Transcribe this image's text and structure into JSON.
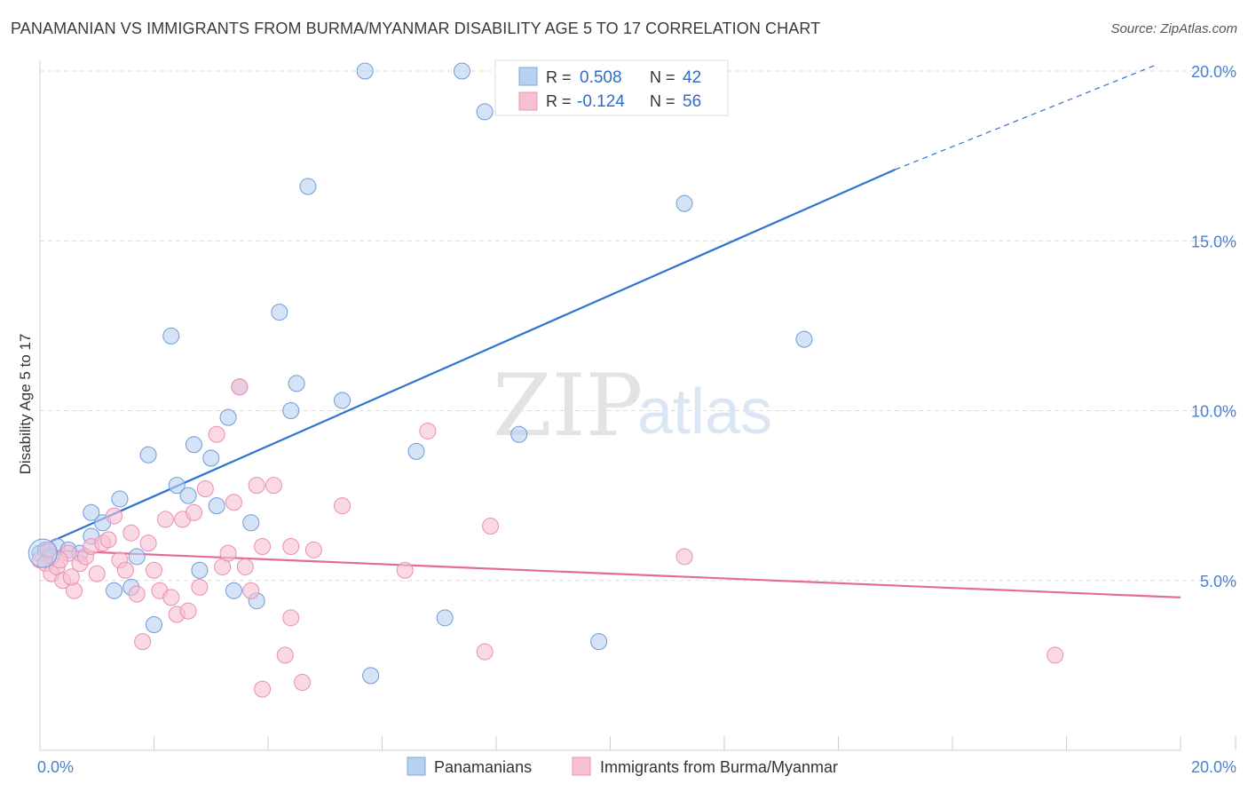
{
  "header": {
    "title": "PANAMANIAN VS IMMIGRANTS FROM BURMA/MYANMAR DISABILITY AGE 5 TO 17 CORRELATION CHART",
    "source": "Source: ZipAtlas.com"
  },
  "watermark": {
    "zip": "ZIP",
    "atlas": "atlas"
  },
  "colors": {
    "blue": "#2f73d0",
    "blue_fill": "#b9d1f1",
    "pink": "#e36b98",
    "pink_fill": "#f6bfd2",
    "tick_text": "#4a7fd0"
  },
  "legend_top": {
    "rows": [
      {
        "r_label": "R =",
        "r_value": "0.508",
        "n_label": "N =",
        "n_value": "42"
      },
      {
        "r_label": "R =",
        "r_value": "-0.124",
        "n_label": "N =",
        "n_value": "56"
      }
    ]
  },
  "legend_bottom": {
    "items": [
      {
        "label": "Panamanians"
      },
      {
        "label": "Immigrants from Burma/Myanmar"
      }
    ]
  },
  "chart_data": {
    "type": "scatter",
    "title": "PANAMANIAN VS IMMIGRANTS FROM BURMA/MYANMAR DISABILITY AGE 5 TO 17 CORRELATION CHART",
    "xlabel": "",
    "ylabel": "Disability Age 5 to 17",
    "xlim": [
      0,
      20
    ],
    "ylim": [
      0,
      20
    ],
    "x_tick_labels": [
      "0.0%",
      "20.0%"
    ],
    "y_tick_labels": [
      "5.0%",
      "10.0%",
      "15.0%",
      "20.0%"
    ],
    "y_tick_values": [
      5,
      10,
      15,
      20
    ],
    "grid": true,
    "legend_position": "top-center",
    "series": [
      {
        "name": "Panamanians",
        "r": 0.508,
        "n": 42,
        "trend": {
          "x0": 0,
          "y0": 6.0,
          "x1": 15.0,
          "y1": 17.1,
          "dashed_to_x": 19.6,
          "dashed_to_y": 20.2
        },
        "points": [
          [
            0.0,
            5.8
          ],
          [
            0.1,
            5.9
          ],
          [
            0.3,
            6.0
          ],
          [
            0.5,
            5.9
          ],
          [
            0.7,
            5.8
          ],
          [
            0.9,
            6.3
          ],
          [
            1.1,
            6.7
          ],
          [
            0.9,
            7.0
          ],
          [
            1.4,
            7.4
          ],
          [
            1.3,
            4.7
          ],
          [
            1.6,
            4.8
          ],
          [
            1.7,
            5.7
          ],
          [
            1.9,
            8.7
          ],
          [
            2.0,
            3.7
          ],
          [
            2.3,
            12.2
          ],
          [
            2.4,
            7.8
          ],
          [
            2.6,
            7.5
          ],
          [
            2.7,
            9.0
          ],
          [
            2.8,
            5.3
          ],
          [
            3.0,
            8.6
          ],
          [
            3.1,
            7.2
          ],
          [
            3.3,
            9.8
          ],
          [
            3.4,
            4.7
          ],
          [
            3.5,
            10.7
          ],
          [
            3.7,
            6.7
          ],
          [
            3.8,
            4.4
          ],
          [
            4.2,
            12.9
          ],
          [
            4.4,
            10.0
          ],
          [
            4.5,
            10.8
          ],
          [
            4.7,
            16.6
          ],
          [
            5.3,
            10.3
          ],
          [
            5.7,
            20.0
          ],
          [
            5.8,
            2.2
          ],
          [
            6.6,
            8.8
          ],
          [
            7.1,
            3.9
          ],
          [
            7.4,
            20.0
          ],
          [
            7.8,
            18.8
          ],
          [
            8.4,
            9.3
          ],
          [
            9.8,
            3.2
          ],
          [
            11.3,
            16.1
          ],
          [
            13.4,
            12.1
          ],
          [
            0.2,
            5.7
          ]
        ]
      },
      {
        "name": "Immigrants from Burma/Myanmar",
        "r": -0.124,
        "n": 56,
        "trend": {
          "x0": 0,
          "y0": 5.9,
          "x1": 20.0,
          "y1": 4.5
        },
        "points": [
          [
            0.0,
            5.6
          ],
          [
            0.1,
            5.5
          ],
          [
            0.2,
            5.2
          ],
          [
            0.3,
            5.4
          ],
          [
            0.4,
            5.0
          ],
          [
            0.5,
            5.8
          ],
          [
            0.6,
            4.7
          ],
          [
            0.7,
            5.5
          ],
          [
            0.8,
            5.7
          ],
          [
            0.9,
            6.0
          ],
          [
            1.0,
            5.2
          ],
          [
            1.1,
            6.1
          ],
          [
            1.2,
            6.2
          ],
          [
            1.3,
            6.9
          ],
          [
            1.4,
            5.6
          ],
          [
            1.5,
            5.3
          ],
          [
            1.6,
            6.4
          ],
          [
            1.7,
            4.6
          ],
          [
            1.8,
            3.2
          ],
          [
            1.9,
            6.1
          ],
          [
            2.0,
            5.3
          ],
          [
            2.1,
            4.7
          ],
          [
            2.2,
            6.8
          ],
          [
            2.3,
            4.5
          ],
          [
            2.4,
            4.0
          ],
          [
            2.5,
            6.8
          ],
          [
            2.6,
            4.1
          ],
          [
            2.7,
            7.0
          ],
          [
            2.8,
            4.8
          ],
          [
            2.9,
            7.7
          ],
          [
            3.1,
            9.3
          ],
          [
            3.2,
            5.4
          ],
          [
            3.3,
            5.8
          ],
          [
            3.4,
            7.3
          ],
          [
            3.5,
            10.7
          ],
          [
            3.6,
            5.4
          ],
          [
            3.7,
            4.7
          ],
          [
            3.8,
            7.8
          ],
          [
            3.9,
            6.0
          ],
          [
            3.9,
            1.8
          ],
          [
            4.1,
            7.8
          ],
          [
            4.3,
            2.8
          ],
          [
            4.4,
            3.9
          ],
          [
            4.4,
            6.0
          ],
          [
            4.6,
            2.0
          ],
          [
            4.8,
            5.9
          ],
          [
            5.3,
            7.2
          ],
          [
            6.4,
            5.3
          ],
          [
            6.8,
            9.4
          ],
          [
            7.8,
            2.9
          ],
          [
            7.9,
            6.6
          ],
          [
            11.3,
            5.7
          ],
          [
            17.8,
            2.8
          ],
          [
            0.15,
            5.9
          ],
          [
            0.35,
            5.6
          ],
          [
            0.55,
            5.1
          ]
        ]
      }
    ]
  }
}
